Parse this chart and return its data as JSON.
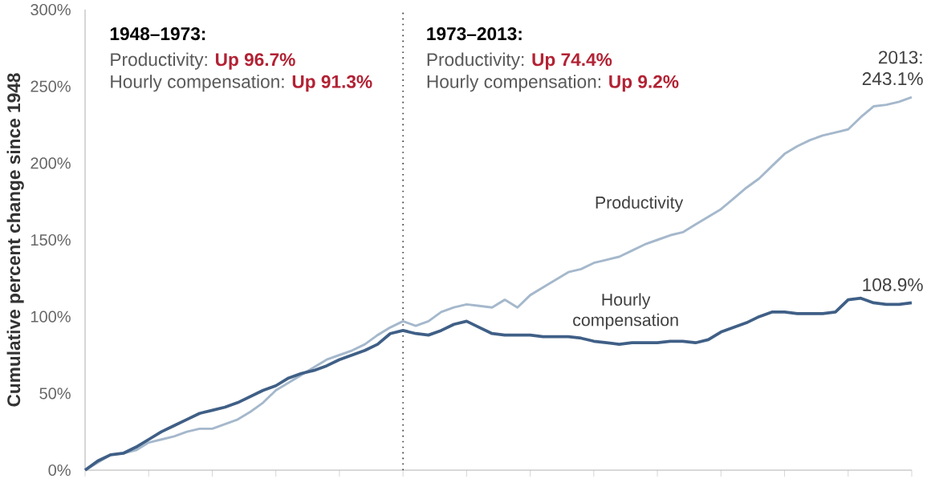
{
  "chart_data": {
    "type": "line",
    "ylabel": "Cumulative percent change since 1948",
    "categories": [
      null,
      null,
      null,
      null,
      null,
      null,
      null,
      null,
      null,
      null,
      null,
      null,
      null,
      null,
      null,
      null,
      null,
      null,
      null,
      null,
      null,
      null,
      null,
      null,
      null,
      null,
      null,
      null,
      null,
      null,
      null,
      null,
      null,
      null,
      null,
      null,
      null,
      null,
      null,
      null,
      null,
      null,
      null,
      null,
      null,
      null,
      null,
      null,
      null,
      null,
      null,
      null,
      null,
      null,
      null,
      null,
      null,
      null,
      null,
      null,
      null,
      null,
      null,
      null,
      null,
      null
    ],
    "series": [
      {
        "name": "Productivity",
        "color": "#a5b8cc",
        "values": [
          0,
          5,
          10,
          11,
          13,
          18,
          20,
          22,
          25,
          27,
          27,
          30,
          33,
          38,
          44,
          52,
          57,
          62,
          67,
          72,
          75,
          78,
          82,
          88,
          93,
          97,
          94,
          97,
          103,
          106,
          108,
          107,
          106,
          111,
          106,
          114,
          119,
          124,
          129,
          131,
          135,
          137,
          139,
          143,
          147,
          150,
          153,
          155,
          160,
          165,
          170,
          177,
          184,
          190,
          198,
          206,
          211,
          215,
          218,
          220,
          222,
          230,
          237,
          238,
          240,
          243
        ]
      },
      {
        "name": "Hourly compensation",
        "color": "#3f5f86",
        "values": [
          0,
          6,
          10,
          11,
          15,
          20,
          25,
          29,
          33,
          37,
          39,
          41,
          44,
          48,
          52,
          55,
          60,
          63,
          65,
          68,
          72,
          75,
          78,
          82,
          89,
          91,
          89,
          88,
          91,
          95,
          97,
          93,
          89,
          88,
          88,
          88,
          87,
          87,
          87,
          86,
          84,
          83,
          82,
          83,
          83,
          83,
          84,
          84,
          83,
          85,
          90,
          93,
          96,
          100,
          103,
          103,
          102,
          102,
          102,
          103,
          111,
          112,
          109,
          108,
          108,
          109
        ]
      }
    ],
    "ylim": [
      0,
      300
    ],
    "yticks": [
      {
        "value": 0,
        "label": "0%"
      },
      {
        "value": 50,
        "label": "50%"
      },
      {
        "value": 100,
        "label": "100%"
      },
      {
        "value": 150,
        "label": "150%"
      },
      {
        "value": 200,
        "label": "200%"
      },
      {
        "value": 250,
        "label": "250%"
      },
      {
        "value": 300,
        "label": "300%"
      }
    ],
    "annotations": [
      "1948–1973:",
      "Productivity:",
      "Up 96.7%",
      "Hourly compensation:",
      "Up 91.3%",
      "1973–2013:",
      "Productivity:",
      "Up 74.4%",
      "Hourly compensation:",
      "Up 9.2%",
      {
        "text": "2013: 243.1%",
        "y": 243.1
      },
      {
        "text": "108.9%",
        "y": 108.9
      }
    ]
  }
}
